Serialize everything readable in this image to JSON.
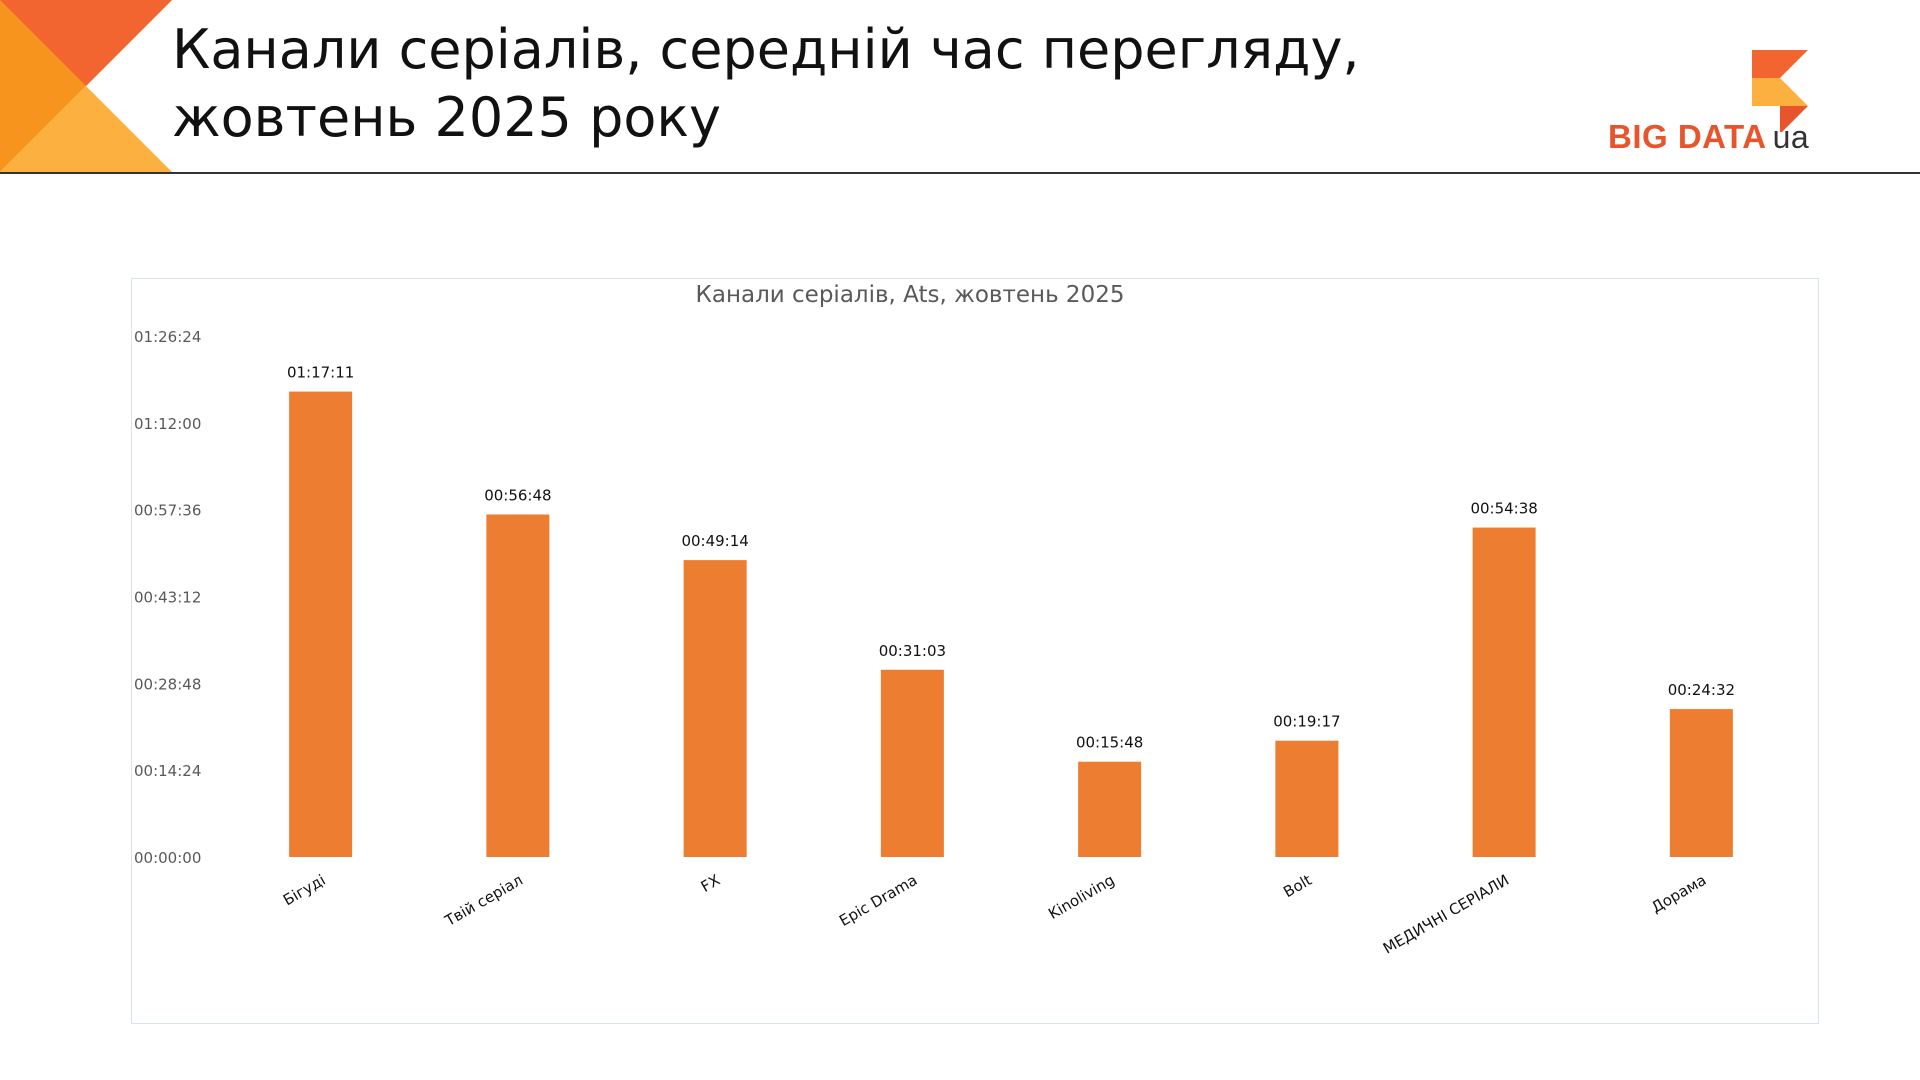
{
  "slide": {
    "title_lines": [
      "Канали серіалів, середній час перегляду,",
      "жовтень 2025 року"
    ]
  },
  "logo": {
    "text": "BIG DATA",
    "suffix": "ua",
    "name": "bigdata-ua-logo"
  },
  "colors": {
    "bar": "#ed7d31",
    "corner_dark": "#f26531",
    "corner_light": "#fbb040",
    "corner_mid": "#f7941d",
    "axis_text": "#595959",
    "title_text": "#111111"
  },
  "chart_data": {
    "type": "bar",
    "title": "Канали серіалів, Ats, жовтень 2025",
    "xlabel": "",
    "ylabel": "",
    "y_unit": "seconds",
    "ylim": [
      0,
      5184
    ],
    "yticks": [
      {
        "value": 0,
        "label": "00:00:00"
      },
      {
        "value": 864,
        "label": "00:14:24"
      },
      {
        "value": 1728,
        "label": "00:28:48"
      },
      {
        "value": 2592,
        "label": "00:43:12"
      },
      {
        "value": 3456,
        "label": "00:57:36"
      },
      {
        "value": 4320,
        "label": "01:12:00"
      },
      {
        "value": 5184,
        "label": "01:26:24"
      }
    ],
    "grid": false,
    "legend": "none",
    "categories": [
      "Бігуді",
      "Твій серіал",
      "FX",
      "Epic Drama",
      "Kinoliving",
      "Bolt",
      "МЕДИЧНІ СЕРІАЛИ",
      "Дорама"
    ],
    "values": [
      4631,
      3408,
      2954,
      1863,
      948,
      1157,
      3278,
      1472
    ],
    "value_labels": [
      "01:17:11",
      "00:56:48",
      "00:49:14",
      "00:31:03",
      "00:15:48",
      "00:19:17",
      "00:54:38",
      "00:24:32"
    ]
  }
}
